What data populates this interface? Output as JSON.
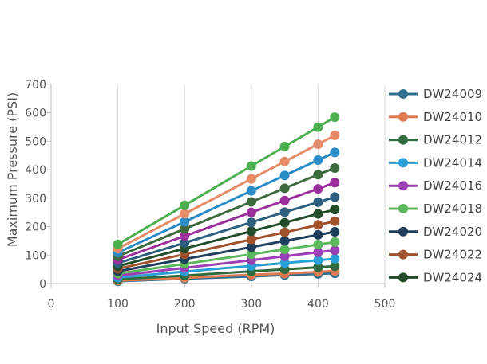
{
  "chart_data": {
    "type": "line",
    "xlabel": "Input Speed (RPM)",
    "ylabel": "Maximum Pressure (PSI)",
    "xlim": [
      0,
      500
    ],
    "ylim": [
      0,
      700
    ],
    "xticks": [
      0,
      100,
      200,
      300,
      400,
      500
    ],
    "yticks": [
      0,
      100,
      200,
      300,
      400,
      500,
      600,
      700
    ],
    "grid": "vertical gridlines",
    "legend_position": "right",
    "x": [
      100,
      200,
      300,
      350,
      400,
      425
    ],
    "series": [
      {
        "name": "DW24009",
        "color": "#2e6e8e",
        "values": [
          8,
          17,
          25,
          30,
          34,
          36
        ]
      },
      {
        "name": "DW24010",
        "color": "#e07b53",
        "values": [
          10,
          20,
          31,
          35,
          41,
          44
        ]
      },
      {
        "name": "DW24012",
        "color": "#2f6b3f",
        "values": [
          15,
          28,
          43,
          50,
          57,
          61
        ]
      },
      {
        "name": "DW24014",
        "color": "#2a9fd6",
        "values": [
          21,
          42,
          62,
          72,
          82,
          87
        ]
      },
      {
        "name": "DW24016",
        "color": "#9b3fb5",
        "values": [
          28,
          55,
          82,
          96,
          110,
          117
        ]
      },
      {
        "name": "DW24018",
        "color": "#5cb85c",
        "values": [
          35,
          69,
          103,
          120,
          137,
          146
        ]
      },
      {
        "name": "DW24020",
        "color": "#1f3f5c",
        "values": [
          43,
          86,
          128,
          150,
          171,
          182
        ]
      },
      {
        "name": "DW24022",
        "color": "#a0522d",
        "values": [
          52,
          103,
          155,
          180,
          206,
          219
        ]
      },
      {
        "name": "DW24024",
        "color": "#234d2a",
        "values": [
          61,
          123,
          184,
          214,
          245,
          260
        ]
      },
      {
        "name": "",
        "color": "#2e5f7e",
        "values": [
          72,
          143,
          215,
          251,
          286,
          304
        ]
      },
      {
        "name": "",
        "color": "#9b2f9b",
        "values": [
          84,
          167,
          250,
          292,
          333,
          355
        ]
      },
      {
        "name": "",
        "color": "#3e6b3e",
        "values": [
          96,
          192,
          287,
          335,
          383,
          406
        ]
      },
      {
        "name": "",
        "color": "#2a8cc7",
        "values": [
          109,
          217,
          326,
          380,
          434,
          461
        ]
      },
      {
        "name": "",
        "color": "#e58b68",
        "values": [
          123,
          245,
          368,
          429,
          490,
          521
        ]
      },
      {
        "name": "",
        "color": "#4caf50",
        "values": [
          138,
          275,
          413,
          482,
          550,
          585
        ]
      }
    ]
  }
}
